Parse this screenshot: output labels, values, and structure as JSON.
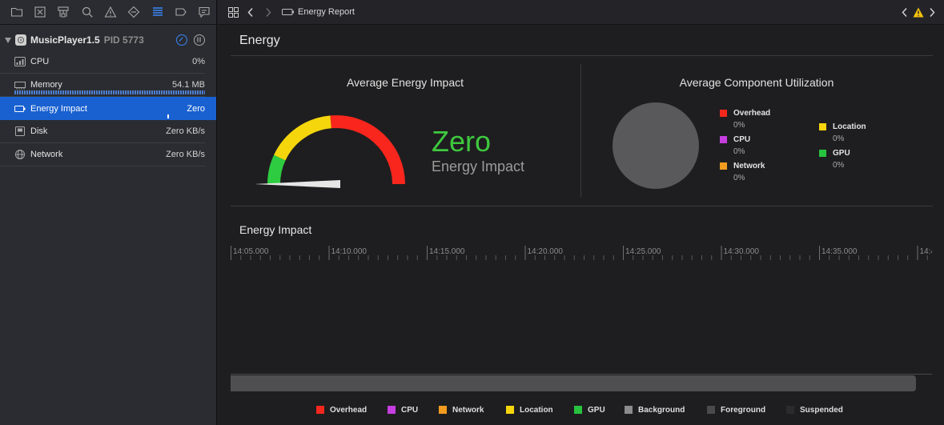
{
  "sidebar": {
    "toolbar_icons": [
      "folder-icon",
      "source-control-icon",
      "hierarchy-icon",
      "search-icon",
      "warning-icon",
      "test-icon",
      "debug-navigator-icon",
      "breakpoint-icon",
      "report-icon"
    ],
    "process": {
      "name": "MusicPlayer1.5",
      "pid": "PID 5773"
    },
    "gauges": [
      {
        "label": "CPU",
        "value": "0%"
      },
      {
        "label": "Memory",
        "value": "54.1 MB"
      },
      {
        "label": "Energy Impact",
        "value": "Zero"
      },
      {
        "label": "Disk",
        "value": "Zero KB/s"
      },
      {
        "label": "Network",
        "value": "Zero KB/s"
      }
    ]
  },
  "jumpbar": {
    "crumb": "Energy Report"
  },
  "report": {
    "title": "Energy",
    "avg_energy_title": "Average Energy Impact",
    "avg_component_title": "Average Component Utilization",
    "impact_value": "Zero",
    "impact_label": "Energy Impact",
    "gauge_level": 0,
    "gauge_colors": {
      "green": "#2ecc40",
      "yellow": "#f5d60c",
      "red": "#f8261d"
    },
    "components": [
      {
        "name": "Overhead",
        "value": "0%",
        "color": "#f5281d"
      },
      {
        "name": "CPU",
        "value": "0%",
        "color": "#c63ee0"
      },
      {
        "name": "Network",
        "value": "0%",
        "color": "#f29b1f"
      },
      {
        "name": "Location",
        "value": "0%",
        "color": "#f5d60c"
      },
      {
        "name": "GPU",
        "value": "0%",
        "color": "#27c33f"
      }
    ],
    "timeline_title": "Energy Impact",
    "timeline_ticks": [
      "14:05.000",
      "14:10.000",
      "14:15.000",
      "14:20.000",
      "14:25.000",
      "14:30.000",
      "14:35.000",
      "14:4"
    ],
    "legend": [
      {
        "name": "Overhead",
        "color": "#f5281d"
      },
      {
        "name": "CPU",
        "color": "#c63ee0"
      },
      {
        "name": "Network",
        "color": "#f29b1f"
      },
      {
        "name": "Location",
        "color": "#f5d60c"
      },
      {
        "name": "GPU",
        "color": "#27c33f"
      },
      {
        "name": "Background",
        "color": "#8c8c8e"
      },
      {
        "name": "Foreground",
        "color": "#4a4a4d"
      },
      {
        "name": "Suspended",
        "color": "#2b2b2e"
      }
    ]
  }
}
